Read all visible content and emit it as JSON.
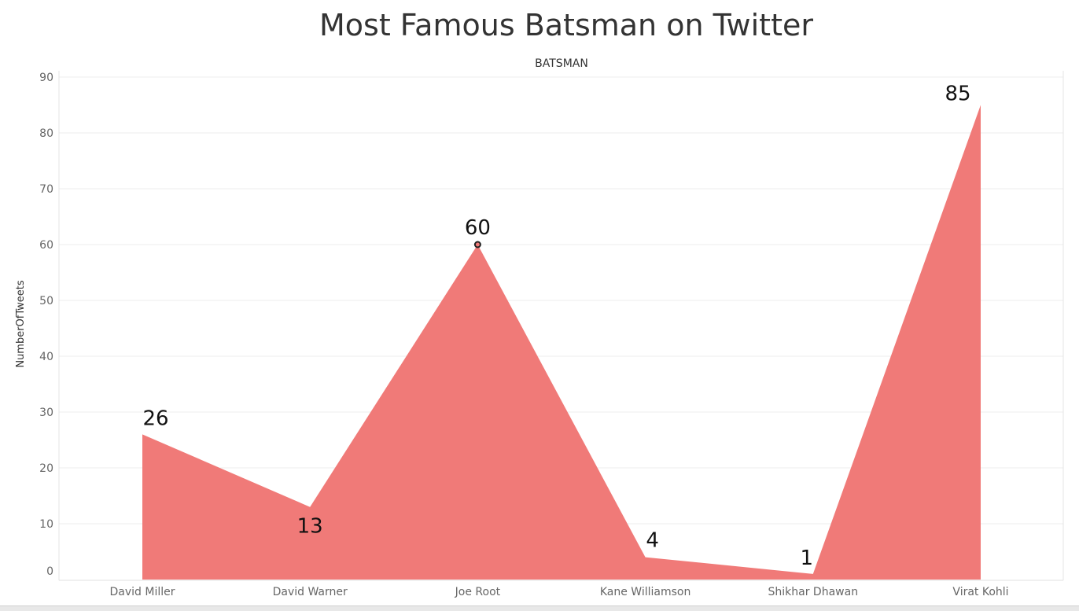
{
  "chart_data": {
    "type": "area",
    "title": "Most Famous Batsman on Twitter",
    "column_header": "BATSMAN",
    "ylabel": "NumberOfTweets",
    "categories": [
      "David Miller",
      "David Warner",
      "Joe Root",
      "Kane Williamson",
      "Shikhar Dhawan",
      "Virat Kohli"
    ],
    "values": [
      26,
      13,
      60,
      4,
      1,
      85
    ],
    "data_labels": [
      "26",
      "13",
      "60",
      "4",
      "1",
      "85"
    ],
    "ylim": [
      0,
      90
    ],
    "yticks": [
      "0",
      "10",
      "20",
      "30",
      "40",
      "50",
      "60",
      "70",
      "80",
      "90"
    ],
    "grid": true,
    "colors": {
      "area": "#f07a78",
      "marker": "#f07a78",
      "text": "#333333",
      "axis_text": "#666666"
    }
  }
}
